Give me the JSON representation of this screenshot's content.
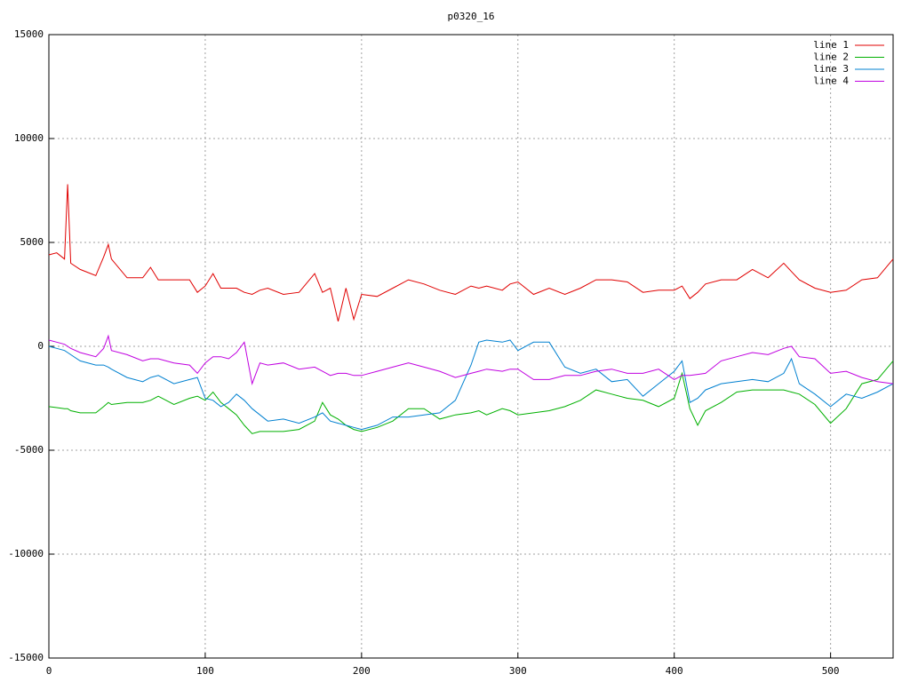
{
  "chart_data": {
    "type": "line",
    "title": "p0320_16",
    "x": [
      0,
      5,
      10,
      12,
      14,
      20,
      30,
      35,
      38,
      40,
      50,
      60,
      65,
      70,
      80,
      90,
      95,
      100,
      105,
      110,
      115,
      120,
      125,
      130,
      135,
      140,
      150,
      160,
      170,
      175,
      180,
      185,
      190,
      195,
      200,
      210,
      220,
      230,
      240,
      250,
      260,
      270,
      275,
      280,
      290,
      295,
      300,
      310,
      320,
      330,
      340,
      350,
      360,
      370,
      380,
      390,
      400,
      405,
      410,
      415,
      420,
      430,
      440,
      450,
      460,
      470,
      475,
      480,
      490,
      500,
      510,
      520,
      530,
      540
    ],
    "series": [
      {
        "name": "line 1",
        "color": "#e00000",
        "values": [
          4400,
          4500,
          4200,
          7800,
          4000,
          3700,
          3400,
          4300,
          4900,
          4200,
          3300,
          3300,
          3800,
          3200,
          3200,
          3200,
          2600,
          2900,
          3500,
          2800,
          2800,
          2800,
          2600,
          2500,
          2700,
          2800,
          2500,
          2600,
          3500,
          2600,
          2800,
          1200,
          2800,
          1300,
          2500,
          2400,
          2800,
          3200,
          3000,
          2700,
          2500,
          2900,
          2800,
          2900,
          2700,
          3000,
          3100,
          2500,
          2800,
          2500,
          2800,
          3200,
          3200,
          3100,
          2600,
          2700,
          2700,
          2900,
          2300,
          2600,
          3000,
          3200,
          3200,
          3700,
          3300,
          4000,
          3600,
          3200,
          2800,
          2600,
          2700,
          3200,
          3300,
          4200
        ]
      },
      {
        "name": "line 2",
        "color": "#00b000",
        "values": [
          -2900,
          -2950,
          -3000,
          -3000,
          -3100,
          -3200,
          -3200,
          -2900,
          -2700,
          -2800,
          -2700,
          -2700,
          -2600,
          -2400,
          -2800,
          -2500,
          -2400,
          -2600,
          -2200,
          -2700,
          -3000,
          -3300,
          -3800,
          -4200,
          -4100,
          -4100,
          -4100,
          -4000,
          -3600,
          -2700,
          -3300,
          -3500,
          -3800,
          -4000,
          -4100,
          -3900,
          -3600,
          -3000,
          -3000,
          -3500,
          -3300,
          -3200,
          -3100,
          -3300,
          -3000,
          -3100,
          -3300,
          -3200,
          -3100,
          -2900,
          -2600,
          -2100,
          -2300,
          -2500,
          -2600,
          -2900,
          -2500,
          -1300,
          -3000,
          -3800,
          -3100,
          -2700,
          -2200,
          -2100,
          -2100,
          -2100,
          -2200,
          -2300,
          -2800,
          -3700,
          -3000,
          -1800,
          -1600,
          -700
        ]
      },
      {
        "name": "line 3",
        "color": "#0080d0",
        "values": [
          0,
          -100,
          -200,
          -300,
          -400,
          -700,
          -900,
          -900,
          -1000,
          -1100,
          -1500,
          -1700,
          -1500,
          -1400,
          -1800,
          -1600,
          -1500,
          -2500,
          -2600,
          -2900,
          -2700,
          -2300,
          -2600,
          -3000,
          -3300,
          -3600,
          -3500,
          -3700,
          -3400,
          -3200,
          -3600,
          -3700,
          -3800,
          -3900,
          -4000,
          -3800,
          -3400,
          -3400,
          -3300,
          -3200,
          -2600,
          -900,
          200,
          300,
          200,
          300,
          -200,
          200,
          200,
          -1000,
          -1300,
          -1100,
          -1700,
          -1600,
          -2400,
          -1800,
          -1200,
          -700,
          -2700,
          -2500,
          -2100,
          -1800,
          -1700,
          -1600,
          -1700,
          -1300,
          -600,
          -1800,
          -2300,
          -2900,
          -2300,
          -2500,
          -2200,
          -1800
        ]
      },
      {
        "name": "line 4",
        "color": "#c000e0",
        "values": [
          300,
          200,
          100,
          0,
          -100,
          -300,
          -500,
          -100,
          500,
          -200,
          -400,
          -700,
          -600,
          -600,
          -800,
          -900,
          -1300,
          -800,
          -500,
          -500,
          -600,
          -300,
          200,
          -1800,
          -800,
          -900,
          -800,
          -1100,
          -1000,
          -1200,
          -1400,
          -1300,
          -1300,
          -1400,
          -1400,
          -1200,
          -1000,
          -800,
          -1000,
          -1200,
          -1500,
          -1300,
          -1200,
          -1100,
          -1200,
          -1100,
          -1100,
          -1600,
          -1600,
          -1400,
          -1400,
          -1200,
          -1100,
          -1300,
          -1300,
          -1100,
          -1600,
          -1400,
          -1400,
          -1350,
          -1300,
          -700,
          -500,
          -300,
          -400,
          -100,
          0,
          -500,
          -600,
          -1300,
          -1200,
          -1500,
          -1700,
          -1800
        ]
      }
    ],
    "xlim": [
      0,
      540
    ],
    "xticks": [
      0,
      100,
      200,
      300,
      400,
      500
    ],
    "ylim": [
      -15000,
      15000
    ],
    "yticks": [
      -15000,
      -10000,
      -5000,
      0,
      5000,
      10000,
      15000
    ],
    "grid": true,
    "legend": "top-right"
  }
}
